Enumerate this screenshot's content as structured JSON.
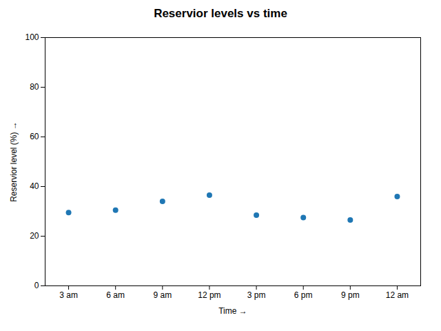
{
  "chart_data": {
    "type": "scatter",
    "title": "Reservior levels vs time",
    "xlabel": "Time",
    "ylabel": "Reservior level (%)",
    "x": [
      1,
      2,
      3,
      4,
      5,
      6,
      7,
      8
    ],
    "values": [
      29.5,
      30.5,
      34.0,
      36.5,
      28.5,
      27.5,
      26.5,
      36.0
    ],
    "color": "#1f77b4",
    "xlim": [
      0.5,
      8.5
    ],
    "xticks": [
      {
        "value": 1,
        "label": "3 am"
      },
      {
        "value": 2,
        "label": "6 am"
      },
      {
        "value": 3,
        "label": "9 am"
      },
      {
        "value": 4,
        "label": "12 pm"
      },
      {
        "value": 5,
        "label": "3 pm"
      },
      {
        "value": 6,
        "label": "6 pm"
      },
      {
        "value": 7,
        "label": "9 pm"
      },
      {
        "value": 8,
        "label": "12 am"
      }
    ],
    "ylim": [
      0,
      100
    ],
    "yticks": [
      0,
      20,
      40,
      60,
      80,
      100
    ],
    "grid": false
  }
}
